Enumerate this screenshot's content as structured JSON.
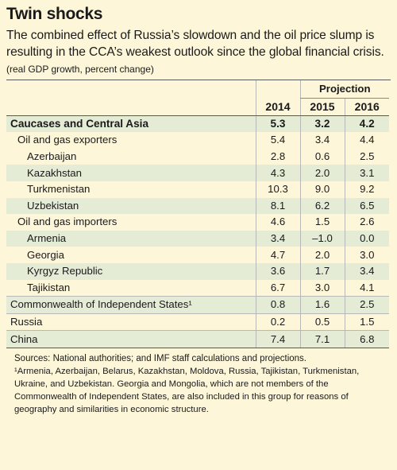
{
  "header": {
    "title": "Twin shocks",
    "subtitle": "The combined effect of Russia’s slowdown and the oil price slump is resulting in the CCA’s weakest outlook since the global financial crisis.",
    "unit_note": "(real GDP growth, percent change)"
  },
  "chart_data": {
    "type": "table",
    "column_group": "Projection",
    "columns": [
      "2014",
      "2015",
      "2016"
    ],
    "rows": [
      {
        "label": "Caucases and Central Asia",
        "values": [
          "5.3",
          "3.2",
          "4.2"
        ],
        "level": 0,
        "bold": true,
        "tint": "green"
      },
      {
        "label": "Oil and gas exporters",
        "values": [
          "5.4",
          "3.4",
          "4.4"
        ],
        "level": 1,
        "bold": false,
        "tint": "none"
      },
      {
        "label": "Azerbaijan",
        "values": [
          "2.8",
          "0.6",
          "2.5"
        ],
        "level": 2,
        "bold": false,
        "tint": "none"
      },
      {
        "label": "Kazakhstan",
        "values": [
          "4.3",
          "2.0",
          "3.1"
        ],
        "level": 2,
        "bold": false,
        "tint": "green"
      },
      {
        "label": "Turkmenistan",
        "values": [
          "10.3",
          "9.0",
          "9.2"
        ],
        "level": 2,
        "bold": false,
        "tint": "none"
      },
      {
        "label": "Uzbekistan",
        "values": [
          "8.1",
          "6.2",
          "6.5"
        ],
        "level": 2,
        "bold": false,
        "tint": "green"
      },
      {
        "label": "Oil and gas importers",
        "values": [
          "4.6",
          "1.5",
          "2.6"
        ],
        "level": 1,
        "bold": false,
        "tint": "none"
      },
      {
        "label": "Armenia",
        "values": [
          "3.4",
          "–1.0",
          "0.0"
        ],
        "level": 2,
        "bold": false,
        "tint": "green"
      },
      {
        "label": "Georgia",
        "values": [
          "4.7",
          "2.0",
          "3.0"
        ],
        "level": 2,
        "bold": false,
        "tint": "none"
      },
      {
        "label": "Kyrgyz Republic",
        "values": [
          "3.6",
          "1.7",
          "3.4"
        ],
        "level": 2,
        "bold": false,
        "tint": "green"
      },
      {
        "label": "Tajikistan",
        "values": [
          "6.7",
          "3.0",
          "4.1"
        ],
        "level": 2,
        "bold": false,
        "tint": "none"
      },
      {
        "label": "Commonwealth of Independent States¹",
        "values": [
          "0.8",
          "1.6",
          "2.5"
        ],
        "level": 0,
        "bold": false,
        "tint": "green"
      },
      {
        "label": "Russia",
        "values": [
          "0.2",
          "0.5",
          "1.5"
        ],
        "level": 0,
        "bold": false,
        "tint": "none"
      },
      {
        "label": "China",
        "values": [
          "7.4",
          "7.1",
          "6.8"
        ],
        "level": 0,
        "bold": false,
        "tint": "green"
      }
    ]
  },
  "footer": {
    "sources": "Sources: National authorities; and IMF staff calculations and projections.",
    "footnote": "¹Armenia, Azerbaijan, Belarus, Kazakhstan, Moldova, Russia, Tajikistan, Turkmenistan, Ukraine, and Uzbekistan. Georgia and Mongolia, which are not members of the Commonwealth of Independent States, are also included in this group for reasons of geography and similarities in economic structure."
  },
  "colors": {
    "background": "#fdf6d9",
    "row_tint": "#e4ecd6",
    "rule": "#5a5a5a"
  }
}
